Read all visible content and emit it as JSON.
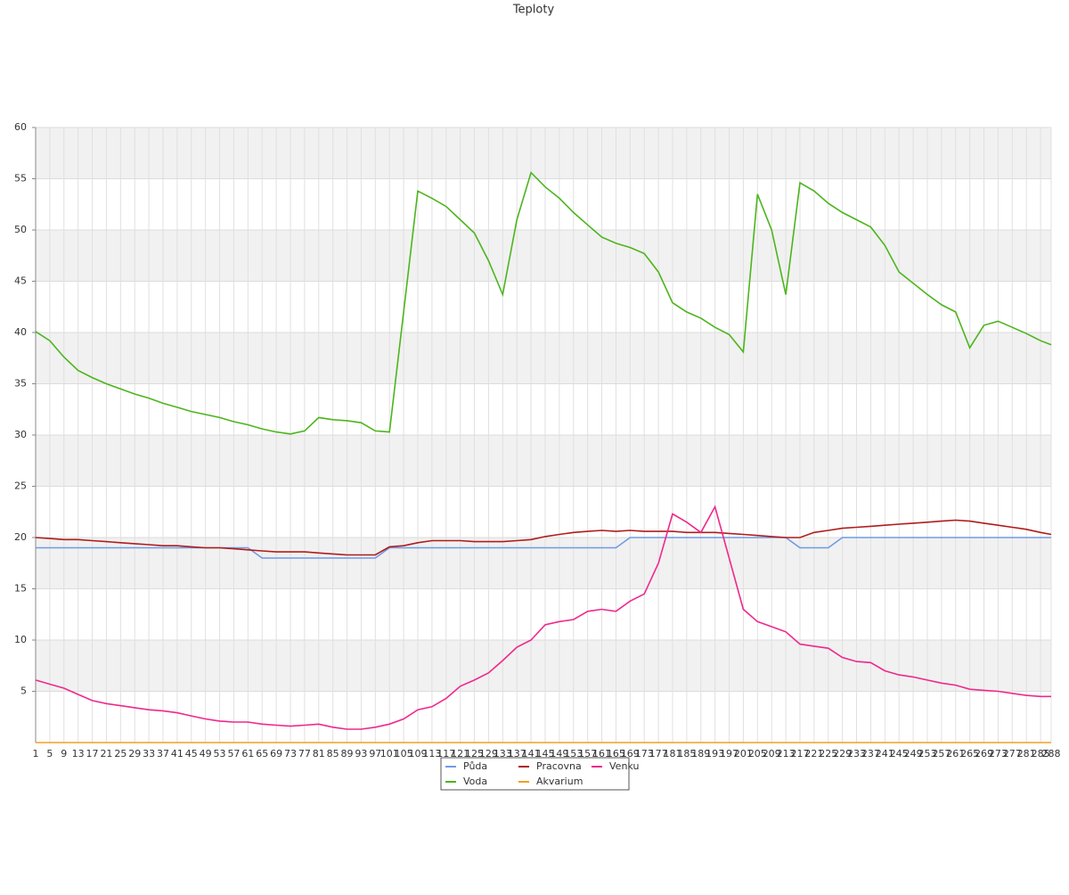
{
  "chart_data": {
    "type": "line",
    "title": "Teploty",
    "x": [
      1,
      5,
      9,
      13,
      17,
      21,
      25,
      29,
      33,
      37,
      41,
      45,
      49,
      53,
      57,
      61,
      65,
      69,
      73,
      77,
      81,
      85,
      89,
      93,
      97,
      101,
      105,
      109,
      113,
      117,
      121,
      125,
      129,
      133,
      137,
      141,
      145,
      149,
      153,
      157,
      161,
      165,
      169,
      173,
      177,
      181,
      185,
      189,
      193,
      197,
      201,
      205,
      209,
      213,
      217,
      221,
      225,
      229,
      233,
      237,
      241,
      245,
      249,
      253,
      257,
      261,
      265,
      269,
      273,
      277,
      281,
      285,
      288
    ],
    "xlim": [
      1,
      288
    ],
    "ylim": [
      0,
      60
    ],
    "yticks": [
      5,
      10,
      15,
      20,
      25,
      30,
      35,
      40,
      45,
      50,
      55,
      60
    ],
    "grid": true,
    "series": [
      {
        "name": "Půda",
        "color": "#6f9be8",
        "values": [
          19,
          19,
          19,
          19,
          19,
          19,
          19,
          19,
          19,
          19,
          19,
          19,
          19,
          19,
          19,
          19,
          18,
          18,
          18,
          18,
          18,
          18,
          18,
          18,
          18,
          19,
          19,
          19,
          19,
          19,
          19,
          19,
          19,
          19,
          19,
          19,
          19,
          19,
          19,
          19,
          19,
          19,
          20,
          20,
          20,
          20,
          20,
          20,
          20,
          20,
          20,
          20,
          20,
          20,
          19,
          19,
          19,
          20,
          20,
          20,
          20,
          20,
          20,
          20,
          20,
          20,
          20,
          20,
          20,
          20,
          20,
          20,
          20
        ]
      },
      {
        "name": "Voda",
        "color": "#4cb51c",
        "values": [
          40.1,
          39.2,
          37.6,
          36.3,
          35.6,
          35.0,
          34.5,
          34.0,
          33.6,
          33.1,
          32.7,
          32.3,
          32.0,
          31.7,
          31.3,
          31.0,
          30.6,
          30.3,
          30.1,
          30.4,
          31.7,
          31.5,
          31.4,
          31.2,
          30.4,
          30.3,
          42.0,
          53.8,
          53.1,
          52.3,
          51.0,
          49.7,
          47.0,
          43.7,
          51.0,
          55.6,
          54.2,
          53.1,
          51.7,
          50.5,
          49.3,
          48.7,
          48.3,
          47.7,
          45.9,
          42.9,
          42.0,
          41.4,
          40.5,
          39.8,
          38.1,
          53.5,
          50.0,
          43.7,
          54.6,
          53.8,
          52.6,
          51.7,
          51.0,
          50.3,
          48.5,
          45.9,
          44.8,
          43.7,
          42.7,
          42.0,
          38.5,
          40.7,
          41.1,
          40.5,
          39.9,
          39.2,
          38.8
        ]
      },
      {
        "name": "Pracovna",
        "color": "#b01c1c",
        "values": [
          20.0,
          19.9,
          19.8,
          19.8,
          19.7,
          19.6,
          19.5,
          19.4,
          19.3,
          19.2,
          19.2,
          19.1,
          19.0,
          19.0,
          18.9,
          18.8,
          18.7,
          18.6,
          18.6,
          18.6,
          18.5,
          18.4,
          18.3,
          18.3,
          18.3,
          19.1,
          19.2,
          19.5,
          19.7,
          19.7,
          19.7,
          19.6,
          19.6,
          19.6,
          19.7,
          19.8,
          20.1,
          20.3,
          20.5,
          20.6,
          20.7,
          20.6,
          20.7,
          20.6,
          20.6,
          20.6,
          20.5,
          20.5,
          20.5,
          20.4,
          20.3,
          20.2,
          20.1,
          20.0,
          20.0,
          20.5,
          20.7,
          20.9,
          21.0,
          21.1,
          21.2,
          21.3,
          21.4,
          21.5,
          21.6,
          21.7,
          21.6,
          21.4,
          21.2,
          21.0,
          20.8,
          20.5,
          20.3
        ]
      },
      {
        "name": "Akvarium",
        "color": "#f0a020",
        "values": [
          0,
          0,
          0,
          0,
          0,
          0,
          0,
          0,
          0,
          0,
          0,
          0,
          0,
          0,
          0,
          0,
          0,
          0,
          0,
          0,
          0,
          0,
          0,
          0,
          0,
          0,
          0,
          0,
          0,
          0,
          0,
          0,
          0,
          0,
          0,
          0,
          0,
          0,
          0,
          0,
          0,
          0,
          0,
          0,
          0,
          0,
          0,
          0,
          0,
          0,
          0,
          0,
          0,
          0,
          0,
          0,
          0,
          0,
          0,
          0,
          0,
          0,
          0,
          0,
          0,
          0,
          0,
          0,
          0,
          0,
          0,
          0,
          0
        ]
      },
      {
        "name": "Venku",
        "color": "#f0288c",
        "values": [
          6.1,
          5.7,
          5.3,
          4.7,
          4.1,
          3.8,
          3.6,
          3.4,
          3.2,
          3.1,
          2.9,
          2.6,
          2.3,
          2.1,
          2.0,
          2.0,
          1.8,
          1.7,
          1.6,
          1.7,
          1.8,
          1.5,
          1.3,
          1.3,
          1.5,
          1.8,
          2.3,
          3.2,
          3.5,
          4.3,
          5.5,
          6.1,
          6.8,
          8.0,
          9.3,
          10.0,
          11.5,
          11.8,
          12.0,
          12.8,
          13.0,
          12.8,
          13.8,
          14.5,
          17.5,
          22.3,
          21.5,
          20.5,
          23.0,
          18.0,
          13.0,
          11.8,
          11.3,
          10.8,
          9.6,
          9.4,
          9.2,
          8.3,
          7.9,
          7.8,
          7.0,
          6.6,
          6.4,
          6.1,
          5.8,
          5.6,
          5.2,
          5.1,
          5.0,
          4.8,
          4.6,
          4.5,
          4.5
        ]
      }
    ]
  }
}
